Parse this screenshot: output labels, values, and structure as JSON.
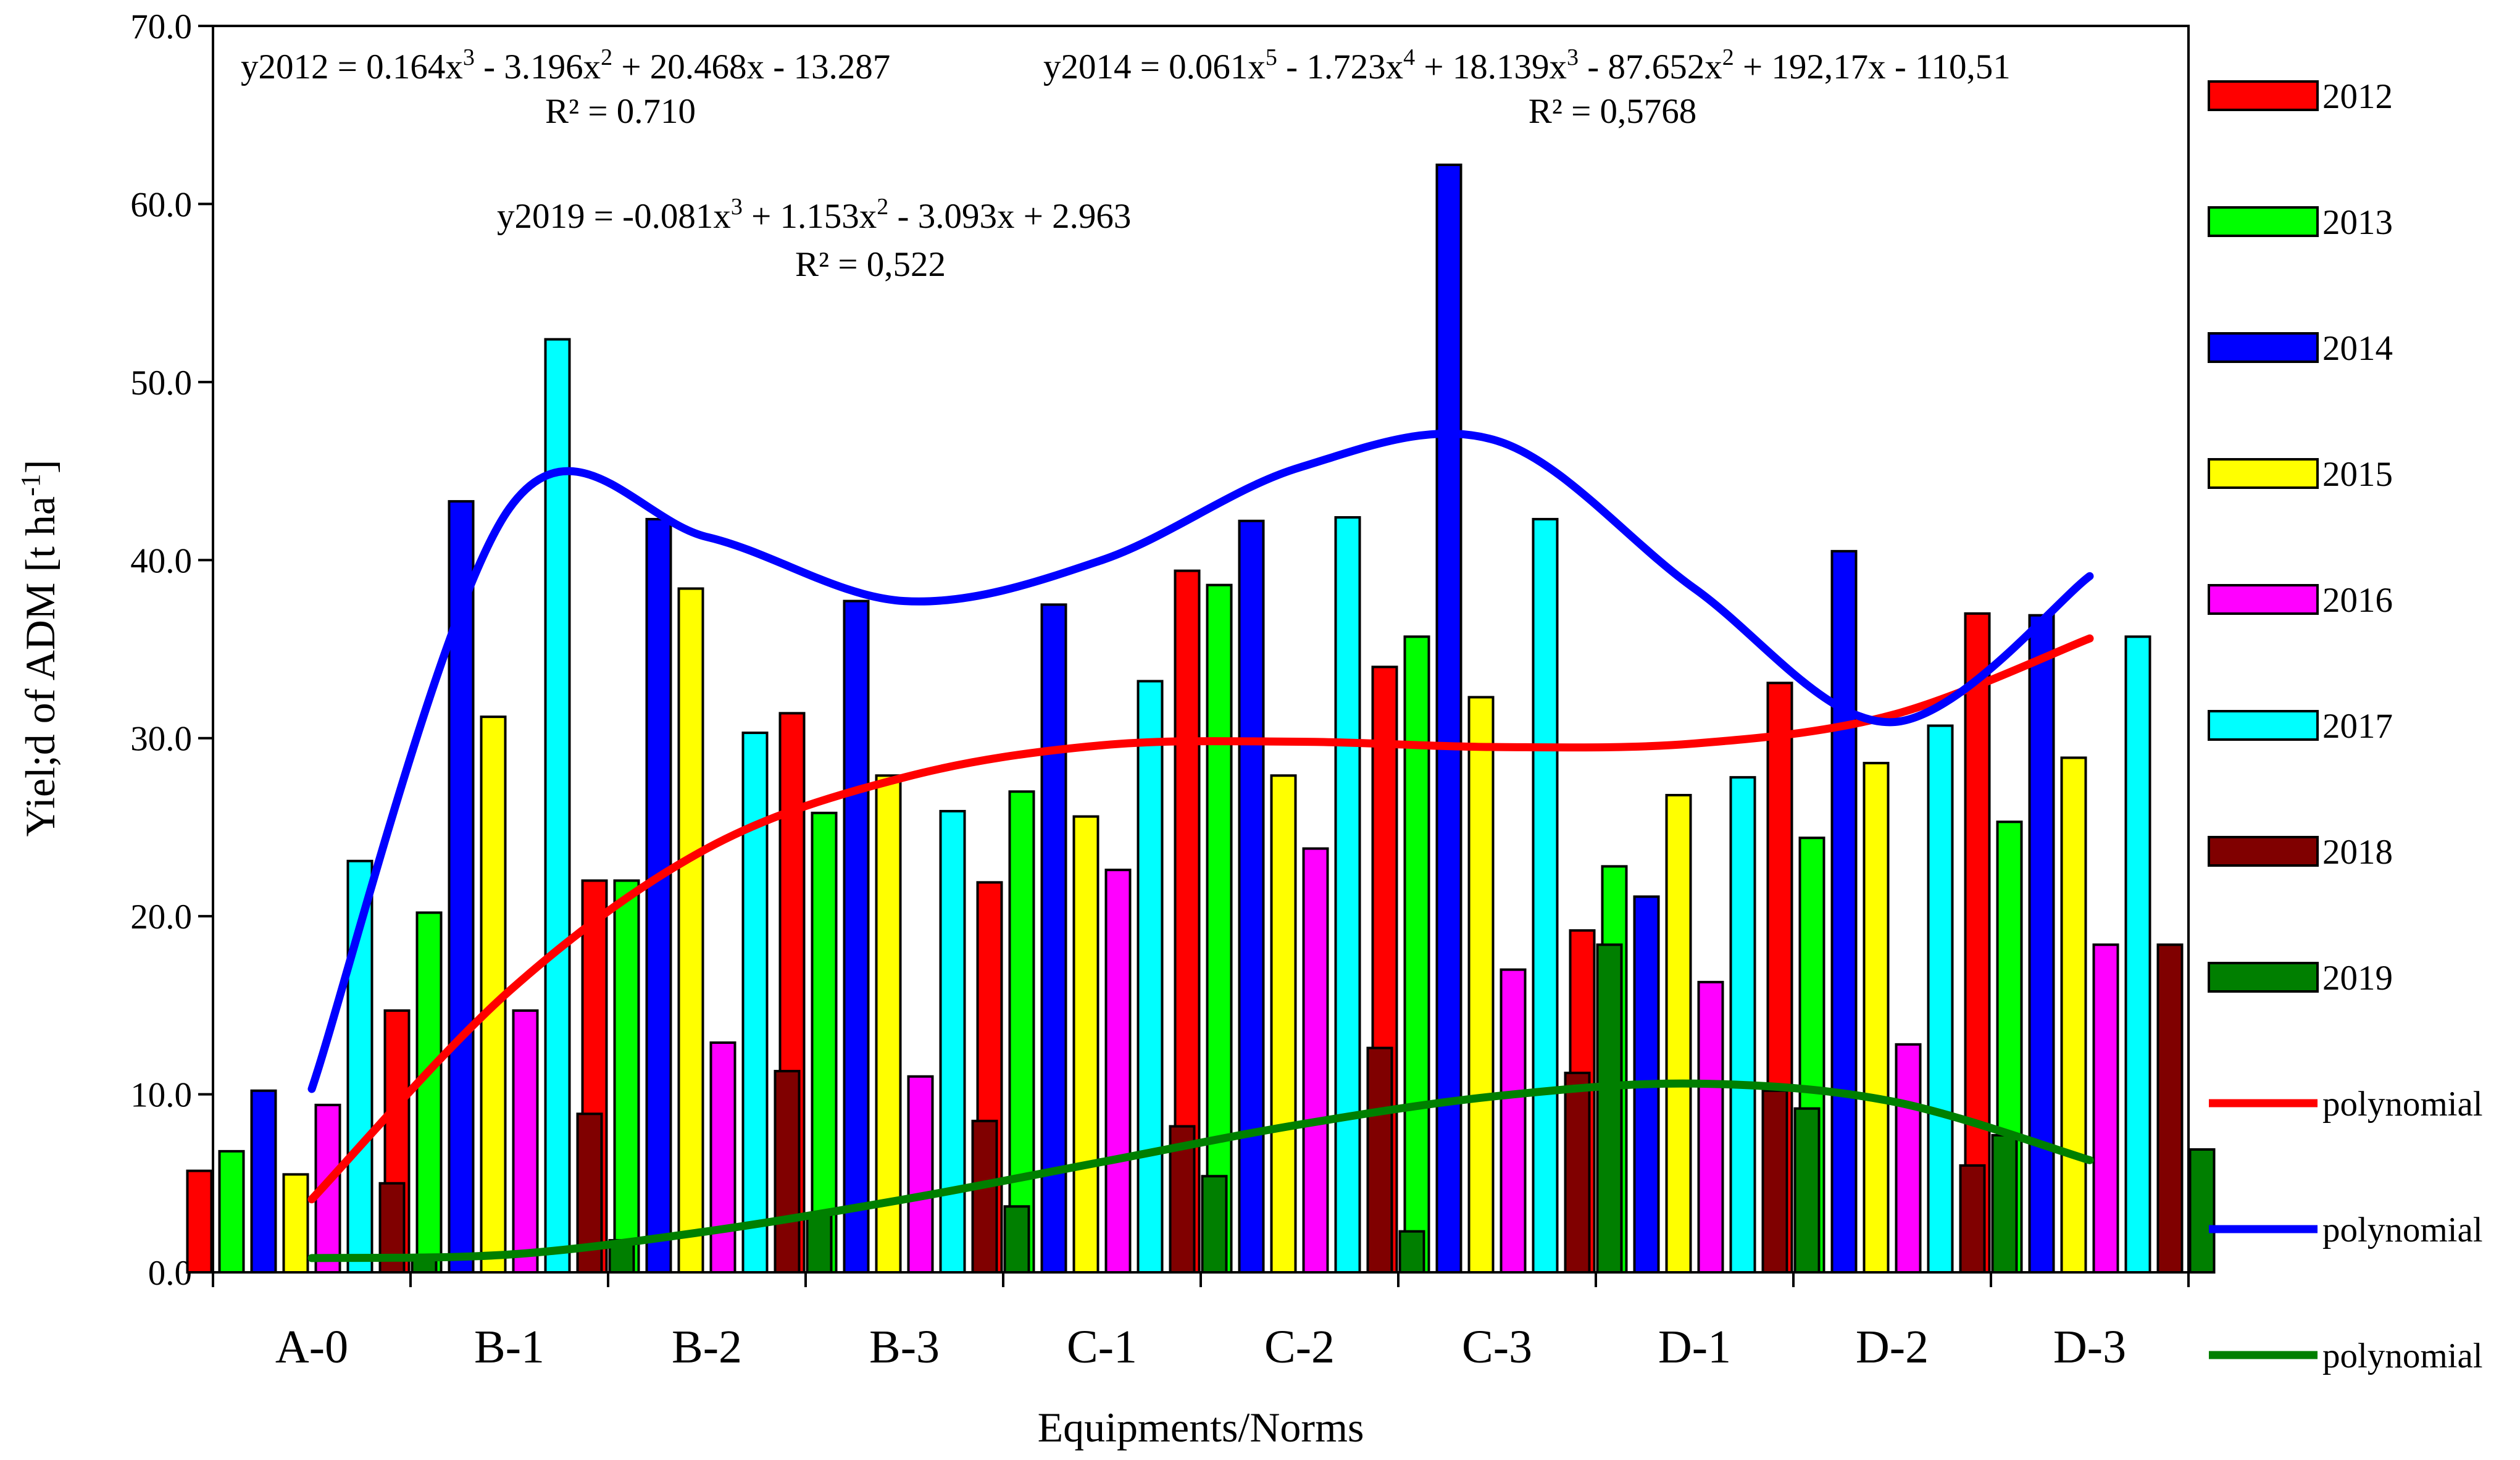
{
  "chart_data": {
    "type": "bar",
    "xlabel": "Equipments/Norms",
    "ylabel": "Yiel;d of ADM [t ha",
    "ylabel_sup": "-1",
    "ylabel_end": "]",
    "ylim": [
      0,
      70
    ],
    "yticks": [
      "0.0",
      "10.0",
      "20.0",
      "30.0",
      "40.0",
      "50.0",
      "60.0",
      "70.0"
    ],
    "grid": false,
    "legend_position": "right",
    "categories": [
      "A-0",
      "B-1",
      "B-2",
      "B-3",
      "C-1",
      "C-2",
      "C-3",
      "D-1",
      "D-2",
      "D-3"
    ],
    "series": [
      {
        "name": "2012",
        "color": "#ff0000",
        "values": [
          5.7,
          14.7,
          22.0,
          31.4,
          21.9,
          39.4,
          34.0,
          19.2,
          33.1,
          37.0
        ]
      },
      {
        "name": "2013",
        "color": "#00ff00",
        "values": [
          6.8,
          20.2,
          22.0,
          25.8,
          27.0,
          38.6,
          35.7,
          22.8,
          24.4,
          25.3
        ]
      },
      {
        "name": "2014",
        "color": "#0000ff",
        "values": [
          10.2,
          43.3,
          42.3,
          37.7,
          37.5,
          42.2,
          62.2,
          21.1,
          40.5,
          36.9
        ]
      },
      {
        "name": "2015",
        "color": "#ffff00",
        "values": [
          5.5,
          31.2,
          38.4,
          27.9,
          25.6,
          27.9,
          32.3,
          26.8,
          28.6,
          28.9
        ]
      },
      {
        "name": "2016",
        "color": "#ff00ff",
        "values": [
          9.4,
          14.7,
          12.9,
          11.0,
          22.6,
          23.8,
          17.0,
          16.3,
          12.8,
          18.4
        ]
      },
      {
        "name": "2017",
        "color": "#00ffff",
        "values": [
          23.1,
          52.4,
          30.3,
          25.9,
          33.2,
          42.4,
          42.3,
          27.8,
          30.7,
          35.7
        ]
      },
      {
        "name": "2018",
        "color": "#800000",
        "values": [
          5.0,
          8.9,
          11.3,
          8.5,
          8.2,
          12.6,
          11.2,
          10.2,
          6.0,
          18.4
        ]
      },
      {
        "name": "2019",
        "color": "#007f00",
        "values": [
          0.9,
          1.8,
          3.3,
          3.7,
          5.4,
          2.3,
          18.4,
          9.2,
          7.7,
          6.9
        ]
      }
    ],
    "trendlines": [
      {
        "name": "polynomial",
        "color": "#ff0000",
        "values": [
          4.1,
          15.8,
          23.8,
          27.8,
          29.6,
          29.8,
          29.5,
          29.7,
          31.3,
          35.6
        ]
      },
      {
        "name": "polynomial",
        "color": "#0000ff",
        "values": [
          10.3,
          42.9,
          41.3,
          37.7,
          40.0,
          45.2,
          46.7,
          38.4,
          30.9,
          39.1
        ]
      },
      {
        "name": "polynomial",
        "color": "#007f00",
        "values": [
          0.8,
          1.0,
          2.3,
          4.1,
          6.2,
          8.3,
          9.9,
          10.6,
          9.6,
          6.3
        ]
      }
    ],
    "annotations": [
      {
        "eq_base": "y2012 = 0.164x",
        "eq_terms": [
          [
            "3",
            " - 3.196x"
          ],
          [
            "2",
            " + 20.468x - 13.287"
          ]
        ],
        "r2": "R² = 0.710"
      },
      {
        "eq_base": "y2014 = 0.061x",
        "eq_terms": [
          [
            "5",
            " - 1.723x"
          ],
          [
            "4",
            " + 18.139x"
          ],
          [
            "3",
            " - 87.652x"
          ],
          [
            "2",
            " + 192,17x - 110,51"
          ]
        ],
        "r2": "R² = 0,5768"
      },
      {
        "eq_base": "y2019 = -0.081x",
        "eq_terms": [
          [
            "3",
            " + 1.153x"
          ],
          [
            "2",
            " - 3.093x + 2.963"
          ]
        ],
        "r2": "R² = 0,522"
      }
    ]
  }
}
